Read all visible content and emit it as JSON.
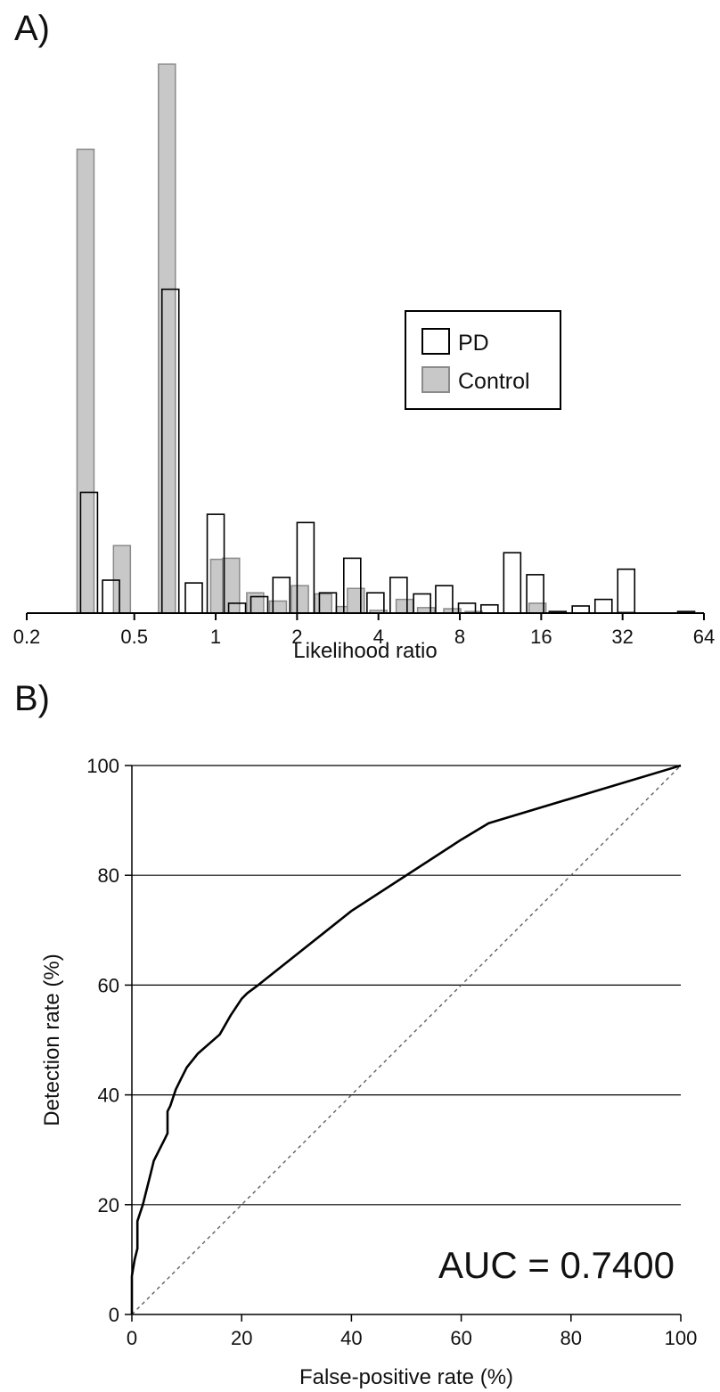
{
  "panels": {
    "a_label": "A)",
    "b_label": "B)"
  },
  "colors": {
    "pd_fill": "#ffffff",
    "pd_stroke": "#000000",
    "control_fill": "#c8c8c8",
    "control_stroke": "#8a8a8a",
    "roc_line": "#000000",
    "reference_line": "#555555"
  },
  "chart_data": [
    {
      "id": "A",
      "type": "bar",
      "xlabel": "Likelihood ratio",
      "x_scale": "log2",
      "xlim": [
        0.2,
        64
      ],
      "x_ticks": [
        0.2,
        0.5,
        1,
        2,
        4,
        8,
        16,
        32,
        64
      ],
      "x_tick_labels": [
        "0.2",
        "0.5",
        "1",
        "2",
        "4",
        "8",
        "16",
        "32",
        "64"
      ],
      "y_axis_shown": false,
      "ylim": [
        0,
        100
      ],
      "legend": {
        "position": "right",
        "entries": [
          "PD",
          "Control"
        ]
      },
      "series": [
        {
          "name": "PD",
          "bars": [
            {
              "x": 0.34,
              "value": 22
            },
            {
              "x": 0.41,
              "value": 6
            },
            {
              "x": 0.68,
              "value": 59
            },
            {
              "x": 0.83,
              "value": 5.5
            },
            {
              "x": 1.0,
              "value": 18
            },
            {
              "x": 1.2,
              "value": 1.8
            },
            {
              "x": 1.45,
              "value": 3
            },
            {
              "x": 1.75,
              "value": 6.5
            },
            {
              "x": 2.15,
              "value": 16.5
            },
            {
              "x": 2.6,
              "value": 3.7
            },
            {
              "x": 3.2,
              "value": 10
            },
            {
              "x": 3.9,
              "value": 3.7
            },
            {
              "x": 4.75,
              "value": 6.5
            },
            {
              "x": 5.8,
              "value": 3.5
            },
            {
              "x": 7.0,
              "value": 5
            },
            {
              "x": 8.5,
              "value": 1.8
            },
            {
              "x": 10.3,
              "value": 1.5
            },
            {
              "x": 12.5,
              "value": 11
            },
            {
              "x": 15.2,
              "value": 7
            },
            {
              "x": 18.4,
              "value": 0.3
            },
            {
              "x": 22.4,
              "value": 1.3
            },
            {
              "x": 27.2,
              "value": 2.5
            },
            {
              "x": 33.0,
              "value": 8
            },
            {
              "x": 55.0,
              "value": 0.3
            }
          ]
        },
        {
          "name": "Control",
          "bars": [
            {
              "x": 0.33,
              "value": 84.5
            },
            {
              "x": 0.45,
              "value": 12.3
            },
            {
              "x": 0.66,
              "value": 100
            },
            {
              "x": 1.03,
              "value": 9.8
            },
            {
              "x": 1.14,
              "value": 10
            },
            {
              "x": 1.4,
              "value": 3.7
            },
            {
              "x": 1.7,
              "value": 2.2
            },
            {
              "x": 2.05,
              "value": 5
            },
            {
              "x": 2.5,
              "value": 3.5
            },
            {
              "x": 3.0,
              "value": 1.2
            },
            {
              "x": 3.3,
              "value": 4.5
            },
            {
              "x": 4.0,
              "value": 0.5
            },
            {
              "x": 5.0,
              "value": 2.5
            },
            {
              "x": 6.0,
              "value": 1
            },
            {
              "x": 7.5,
              "value": 0.8
            },
            {
              "x": 9.0,
              "value": 0.3
            },
            {
              "x": 15.5,
              "value": 1.8
            },
            {
              "x": 33.0,
              "value": 0.2
            }
          ]
        }
      ]
    },
    {
      "id": "B",
      "type": "line",
      "xlabel": "False-positive rate (%)",
      "ylabel": "Detection rate (%)",
      "xlim": [
        0,
        100
      ],
      "ylim": [
        0,
        100
      ],
      "x_ticks": [
        0,
        20,
        40,
        60,
        80,
        100
      ],
      "y_ticks": [
        0,
        20,
        40,
        60,
        80,
        100
      ],
      "grid": "horizontal",
      "annotation": "AUC = 0.7400",
      "series": [
        {
          "style": "solid",
          "points": [
            [
              0,
              0
            ],
            [
              0,
              7
            ],
            [
              0.5,
              10
            ],
            [
              1,
              12
            ],
            [
              1,
              17
            ],
            [
              2,
              20
            ],
            [
              2.5,
              22
            ],
            [
              3,
              24
            ],
            [
              3.5,
              26
            ],
            [
              4,
              28
            ],
            [
              5,
              30
            ],
            [
              6,
              32
            ],
            [
              6.5,
              33
            ],
            [
              6.5,
              37
            ],
            [
              7,
              38
            ],
            [
              8,
              41
            ],
            [
              9,
              43
            ],
            [
              10,
              45
            ],
            [
              12,
              47.5
            ],
            [
              16,
              51
            ],
            [
              18,
              54.5
            ],
            [
              20,
              57.5
            ],
            [
              21,
              58.5
            ],
            [
              23,
              60
            ],
            [
              40,
              73.5
            ],
            [
              60,
              86.5
            ],
            [
              65,
              89.5
            ],
            [
              100,
              100
            ]
          ]
        },
        {
          "style": "dashed",
          "points": [
            [
              0,
              0
            ],
            [
              100,
              100
            ]
          ]
        }
      ]
    }
  ]
}
